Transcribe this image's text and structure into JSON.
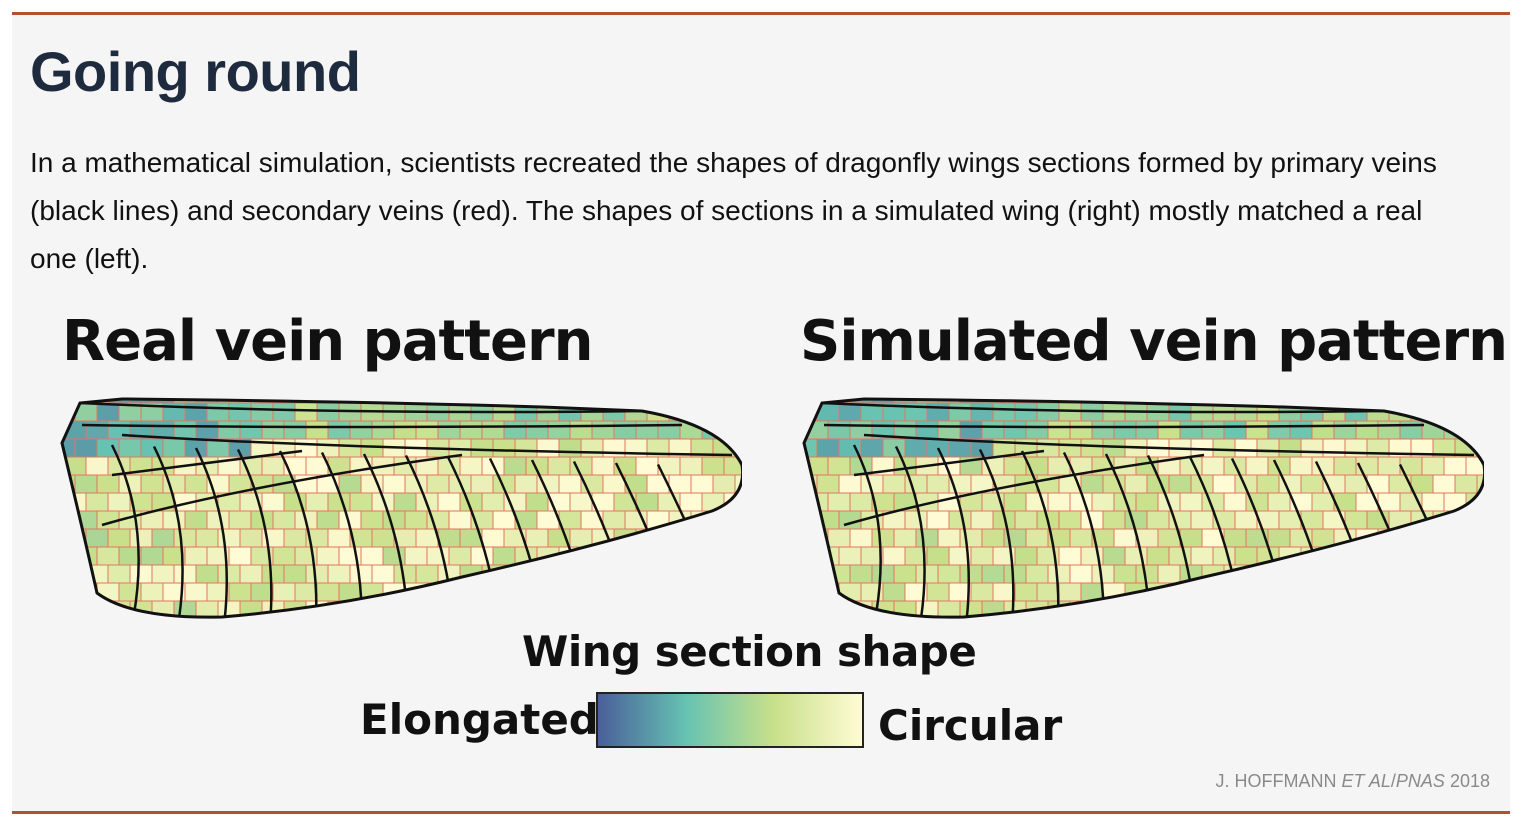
{
  "header": {
    "title": "Going round",
    "description": "In a mathematical simulation, scientists recreated the shapes of dragonfly wings sections formed by primary veins (black lines) and secondary veins (red). The shapes of sections in a simulated wing (right) mostly matched a real one (left)."
  },
  "panels": {
    "left_title": "Real vein pattern",
    "right_title": "Simulated vein pattern"
  },
  "legend": {
    "title": "Wing section shape",
    "low_label": "Elongated",
    "high_label": "Circular",
    "colors": [
      "#4a5f99",
      "#66c2b2",
      "#c9e08a",
      "#fffbd4"
    ]
  },
  "credit": {
    "author": "J. HOFFMANN",
    "et_al": "ET AL",
    "journal": "PNAS",
    "year": "2018"
  },
  "colors": {
    "accent_rule": "#b5502f",
    "title": "#1e2a3d",
    "primary_vein": "#111111",
    "secondary_vein": "#e0775f"
  }
}
